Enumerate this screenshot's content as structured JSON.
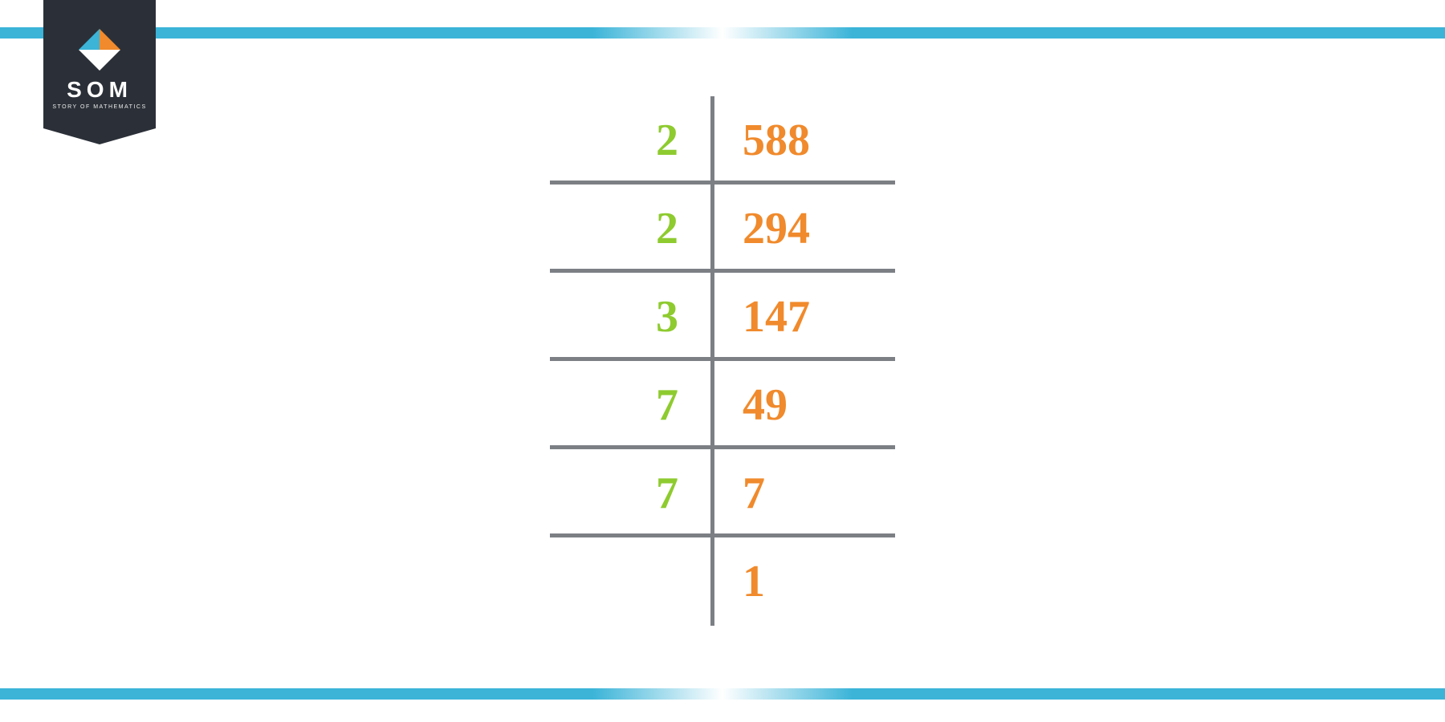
{
  "logo": {
    "abbr": "SOM",
    "tagline": "STORY OF MATHEMATICS",
    "mark_colors": {
      "top": "#f08a2c",
      "right": "#ffffff",
      "bottom": "#ffffff",
      "left": "#3bb4d8"
    },
    "badge_bg": "#2b3038"
  },
  "accent": {
    "bar_color": "#3bb4d8"
  },
  "factorization": {
    "type": "prime-factorization-ladder",
    "divisor_color": "#8ecb2f",
    "quotient_color": "#f08a2c",
    "line_color": "#7c8085",
    "font_size_pt": 42,
    "rows": [
      {
        "divisor": "2",
        "quotient": "588"
      },
      {
        "divisor": "2",
        "quotient": "294"
      },
      {
        "divisor": "3",
        "quotient": "147"
      },
      {
        "divisor": "7",
        "quotient": "49"
      },
      {
        "divisor": "7",
        "quotient": "7"
      },
      {
        "divisor": "",
        "quotient": "1"
      }
    ]
  }
}
